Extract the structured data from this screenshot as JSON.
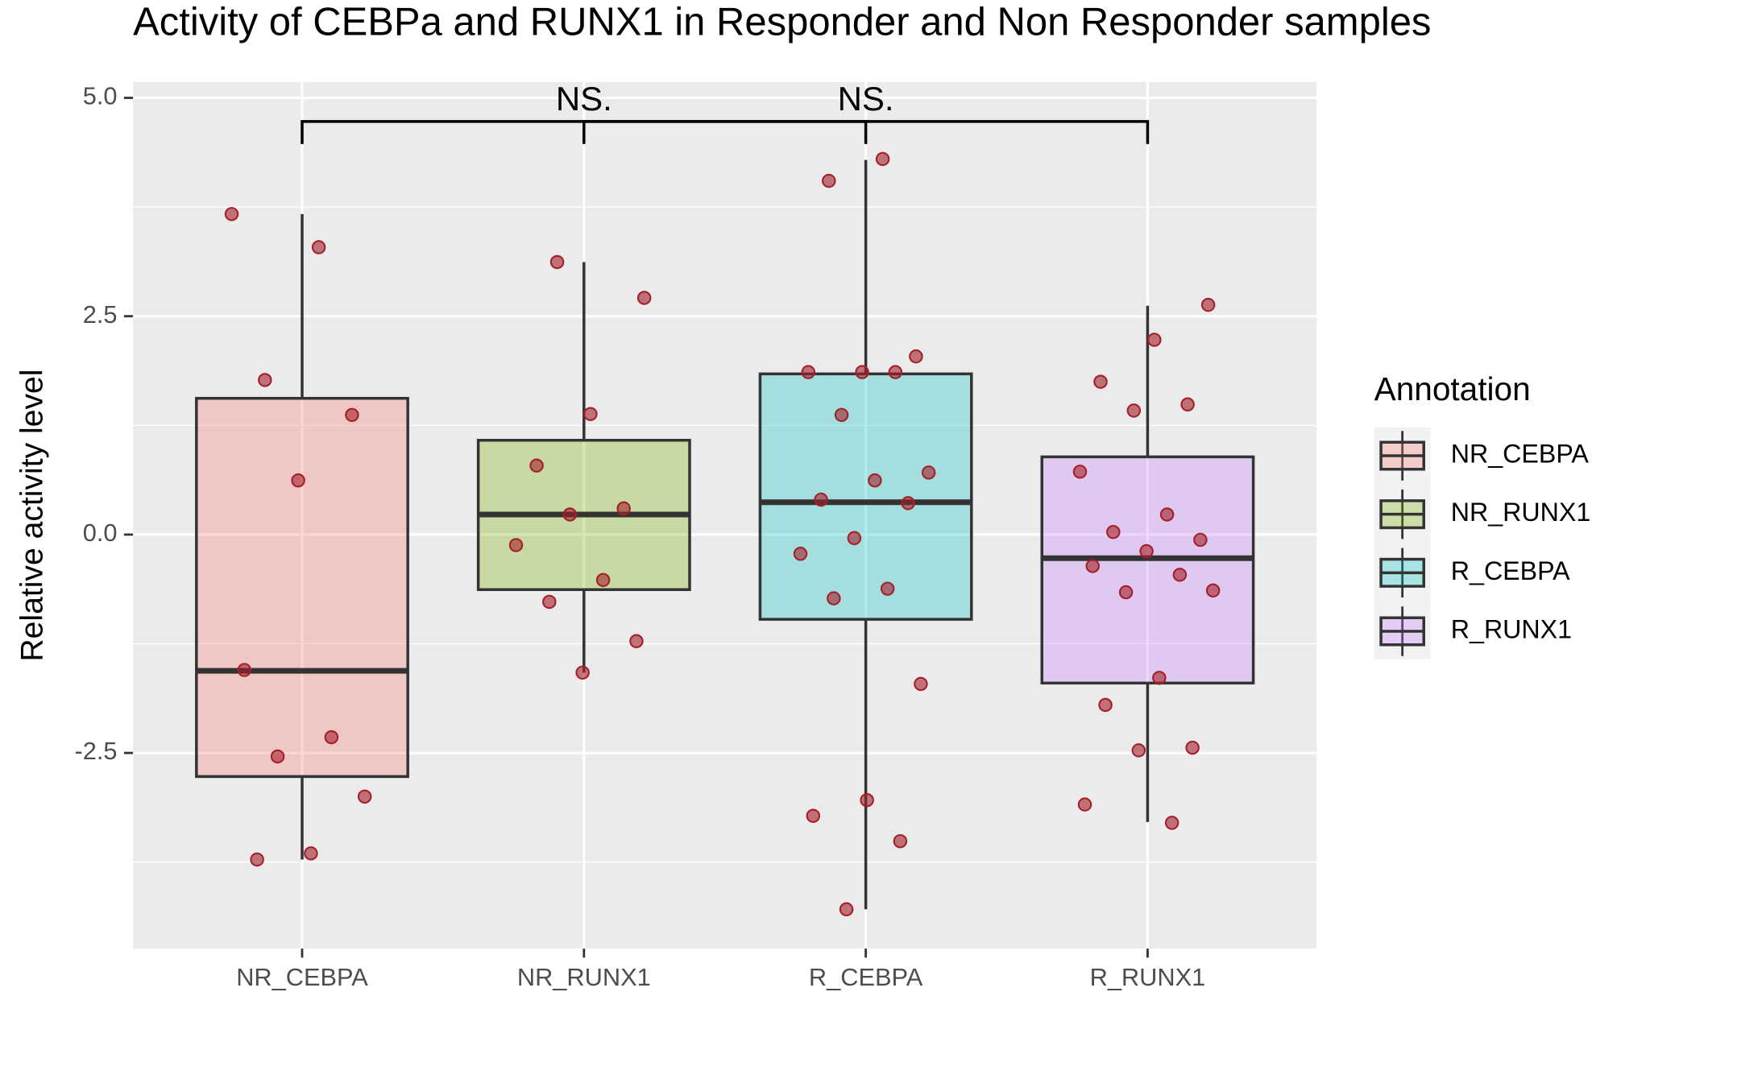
{
  "chart_data": {
    "type": "boxplot",
    "title": "Activity of CEBPa and RUNX1 in Responder and Non Responder samples",
    "y_label": "Relative activity level",
    "legend_title": "Annotation",
    "categories": [
      "NR_CEBPA",
      "NR_RUNX1",
      "R_CEBPA",
      "R_RUNX1"
    ],
    "colors": [
      "#F8766D",
      "#7CAE00",
      "#00BFC4",
      "#C77CFF"
    ],
    "point_color": "#a3202a",
    "boxes": [
      {
        "whisker_low": -3.72,
        "q1": -2.77,
        "median": -1.56,
        "q3": 1.56,
        "whisker_high": 3.67
      },
      {
        "whisker_low": -1.58,
        "q1": -0.63,
        "median": 0.23,
        "q3": 1.08,
        "whisker_high": 3.12
      },
      {
        "whisker_low": -4.29,
        "q1": -0.97,
        "median": 0.37,
        "q3": 1.84,
        "whisker_high": 4.29
      },
      {
        "whisker_low": -3.29,
        "q1": -1.7,
        "median": -0.27,
        "q3": 0.89,
        "whisker_high": 2.62
      }
    ],
    "points": [
      [
        3.67,
        3.29,
        1.77,
        1.37,
        0.62,
        -1.55,
        -2.32,
        -2.54,
        -3.0,
        -3.65,
        -3.72
      ],
      [
        3.12,
        2.71,
        1.38,
        0.79,
        0.3,
        0.23,
        -0.12,
        -0.52,
        -0.77,
        -1.22,
        -1.58
      ],
      [
        4.3,
        4.05,
        2.04,
        1.86,
        1.86,
        1.86,
        1.37,
        0.71,
        0.62,
        0.4,
        0.36,
        -0.04,
        -0.22,
        -0.62,
        -0.73,
        -1.71,
        -3.04,
        -3.22,
        -3.51,
        -4.29
      ],
      [
        2.63,
        2.23,
        1.75,
        1.49,
        1.42,
        0.72,
        0.23,
        0.03,
        -0.06,
        -0.19,
        -0.36,
        -0.46,
        -0.66,
        -0.64,
        -1.64,
        -1.95,
        -2.44,
        -2.47,
        -3.09,
        -3.3
      ]
    ],
    "comparisons": [
      {
        "pair": [
          0,
          2
        ],
        "label": "NS."
      },
      {
        "pair": [
          1,
          3
        ],
        "label": "NS."
      }
    ],
    "ylim": [
      -4.74,
      5.18
    ],
    "yticks": [
      {
        "value": 5,
        "label": "5.0"
      },
      2.5,
      {
        "value": 0,
        "label": "0.0"
      },
      -2.5
    ],
    "grid": true
  }
}
